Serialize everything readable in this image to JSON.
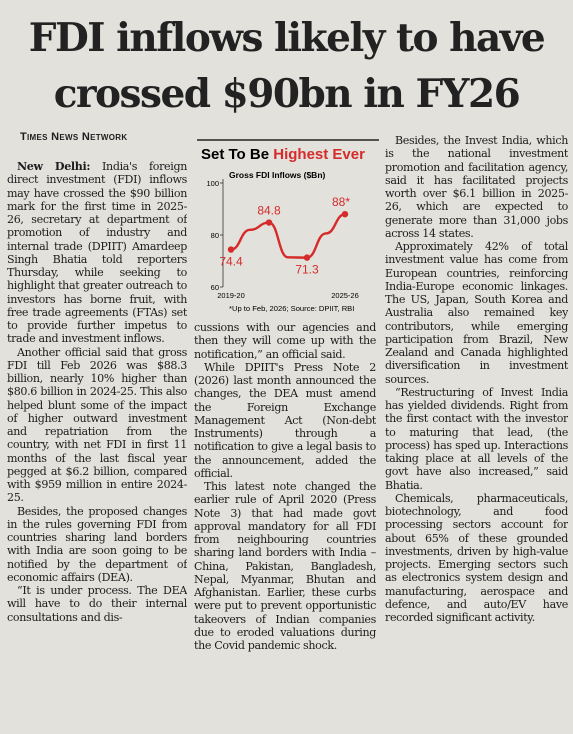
{
  "headline": [
    "FDI inflows likely to have",
    "crossed $90bn in FY26"
  ],
  "byline": "Times News Network",
  "dateline": "New Delhi:",
  "columns": [
    [
      "India's foreign direct investment (FDI) inflows may have crossed the $90 billion mark for the first time in 2025-26, secretary at department of promotion of industry and internal trade (DPIIT) Amardeep Singh Bhatia told reporters Thursday, while seeking to highlight that greater outreach to investors has borne fruit, with free trade agreements (FTAs) set to provide further impetus to trade and investment inflows.",
      "Another official said that gross FDI till Feb 2026 was $88.3 billion, nearly 10% higher than $80.6 billion in 2024-25. This also helped blunt some of the impact of higher outward investment and repatriation from the country, with net FDI in first 11 months of the last fiscal year pegged at $6.2 billion, compared with $959 million in entire 2024-25.",
      "Besides, the proposed changes in the rules governing FDI from countries sharing land borders with India are soon going to be notified by the department of economic affairs (DEA).",
      "“It is under process. The DEA will have to do their internal consultations and dis-"
    ],
    [
      "cussions with our agencies and then they will come up with the notification,” an official said.",
      "While DPIIT's Press Note 2 (2026) last month announced the changes, the DEA must amend the Foreign Exchange Management Act (Non-debt Instruments) through a notification to give a legal basis to the announcement, added the official.",
      "This latest note changed the earlier rule of April 2020 (Press Note 3) that had made govt approval mandatory for all FDI from neighbouring countries sharing land borders with India – China, Pakistan, Bangladesh, Nepal, Myanmar, Bhutan and Afghanistan. Earlier, these curbs were put to prevent opportunistic takeovers of Indian companies due to eroded valuations during the Covid pandemic shock."
    ],
    [
      "Besides, the Invest India, which is the national investment promotion and facilitation agency, said it has facilitated projects worth over $6.1 billion in 2025-26, which are expected to generate more than 31,000 jobs across 14 states.",
      "Approximately 42% of total investment value has come from European countries, reinforcing India-Europe economic linkages. The US, Japan, South Korea and Australia also remained key contributors, while emerging participation from Brazil, New Zealand and Canada highlighted diversification in investment sources.",
      "“Restructuring of Invest India has yielded dividends. Right from the first contact with the investor to maturing that lead, (the process) has sped up. Interactions taking place at all levels of the govt have also increased,” said Bhatia.",
      "Chemicals, pharmaceuticals, biotechnology, and food processing sectors account for about 65% of these grounded investments, driven by high-value projects. Emerging sectors such as electronics system design and manufacturing, aerospace and defence, and auto/EV have recorded significant activity."
    ]
  ],
  "chart_data": {
    "type": "line",
    "title": [
      "Set To Be",
      "Highest Ever"
    ],
    "subtitle": "Gross FDI Inflows ($Bn)",
    "note": "*Up to Feb, 2026; Source: DPIIT, RBI",
    "categories": [
      "2019-20",
      null,
      null,
      null,
      null,
      null,
      "2025-26"
    ],
    "values": [
      74.4,
      82.0,
      84.8,
      71.4,
      71.3,
      80.6,
      88
    ],
    "value_labels": [
      "74.4",
      null,
      "84.8",
      null,
      "71.3",
      null,
      "88*"
    ],
    "color": "#d62b2b",
    "ylim": [
      60,
      100
    ],
    "yticks": [
      60,
      80,
      100
    ]
  }
}
